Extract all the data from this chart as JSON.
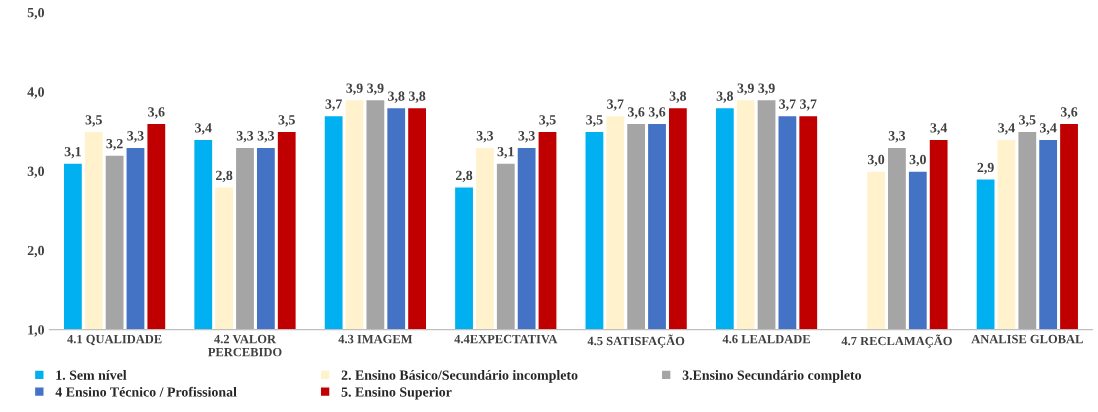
{
  "chart_data": {
    "type": "bar",
    "categories": [
      "4.1 QUALIDADE",
      "4.2 VALOR\nPERCEBIDO",
      "4.3 IMAGEM",
      "4.4EXPECTATIVA",
      "4.5 SATISFAÇÃO",
      "4.6 LEALDADE",
      "4.7 RECLAMAÇÃO",
      "ANALISE GLOBAL"
    ],
    "series": [
      {
        "name": "1. Sem nível",
        "color": "#00b0f0",
        "values": [
          3.1,
          3.4,
          3.7,
          2.8,
          3.5,
          3.8,
          null,
          2.9
        ],
        "value_labels": [
          "3,1",
          "3,4",
          "3,7",
          "2,8",
          "3,5",
          "3,8",
          null,
          "2,9"
        ]
      },
      {
        "name": "2. Ensino Básico/Secundário incompleto",
        "color": "#fff2cc",
        "values": [
          3.5,
          2.8,
          3.9,
          3.3,
          3.7,
          3.9,
          3.0,
          3.4
        ],
        "value_labels": [
          "3,5",
          "2,8",
          "3,9",
          "3,3",
          "3,7",
          "3,9",
          "3,0",
          "3,4"
        ]
      },
      {
        "name": "3.Ensino Secundário completo",
        "color": "#a5a5a5",
        "values": [
          3.2,
          3.3,
          3.9,
          3.1,
          3.6,
          3.9,
          3.3,
          3.5
        ],
        "value_labels": [
          "3,2",
          "3,3",
          "3,9",
          "3,1",
          "3,6",
          "3,9",
          "3,3",
          "3,5"
        ]
      },
      {
        "name": "4 Ensino Técnico / Profissional",
        "color": "#4472c4",
        "values": [
          3.3,
          3.3,
          3.8,
          3.3,
          3.6,
          3.7,
          3.0,
          3.4
        ],
        "value_labels": [
          "3,3",
          "3,3",
          "3,8",
          "3,3",
          "3,6",
          "3,7",
          "3,0",
          "3,4"
        ]
      },
      {
        "name": "5. Ensino Superior",
        "color": "#c00000",
        "values": [
          3.6,
          3.5,
          3.8,
          3.5,
          3.8,
          3.7,
          3.4,
          3.6
        ],
        "value_labels": [
          "3,6",
          "3,5",
          "3,8",
          "3,5",
          "3,8",
          "3,7",
          "3,4",
          "3,6"
        ]
      }
    ],
    "ylim": [
      1,
      5
    ],
    "yticks": [
      {
        "value": 1,
        "label": "1,0"
      },
      {
        "value": 2,
        "label": "2,0"
      },
      {
        "value": 3,
        "label": "3,0"
      },
      {
        "value": 4,
        "label": "4,0"
      },
      {
        "value": 5,
        "label": "5,0"
      }
    ],
    "grid": false,
    "legend": "bottom"
  }
}
